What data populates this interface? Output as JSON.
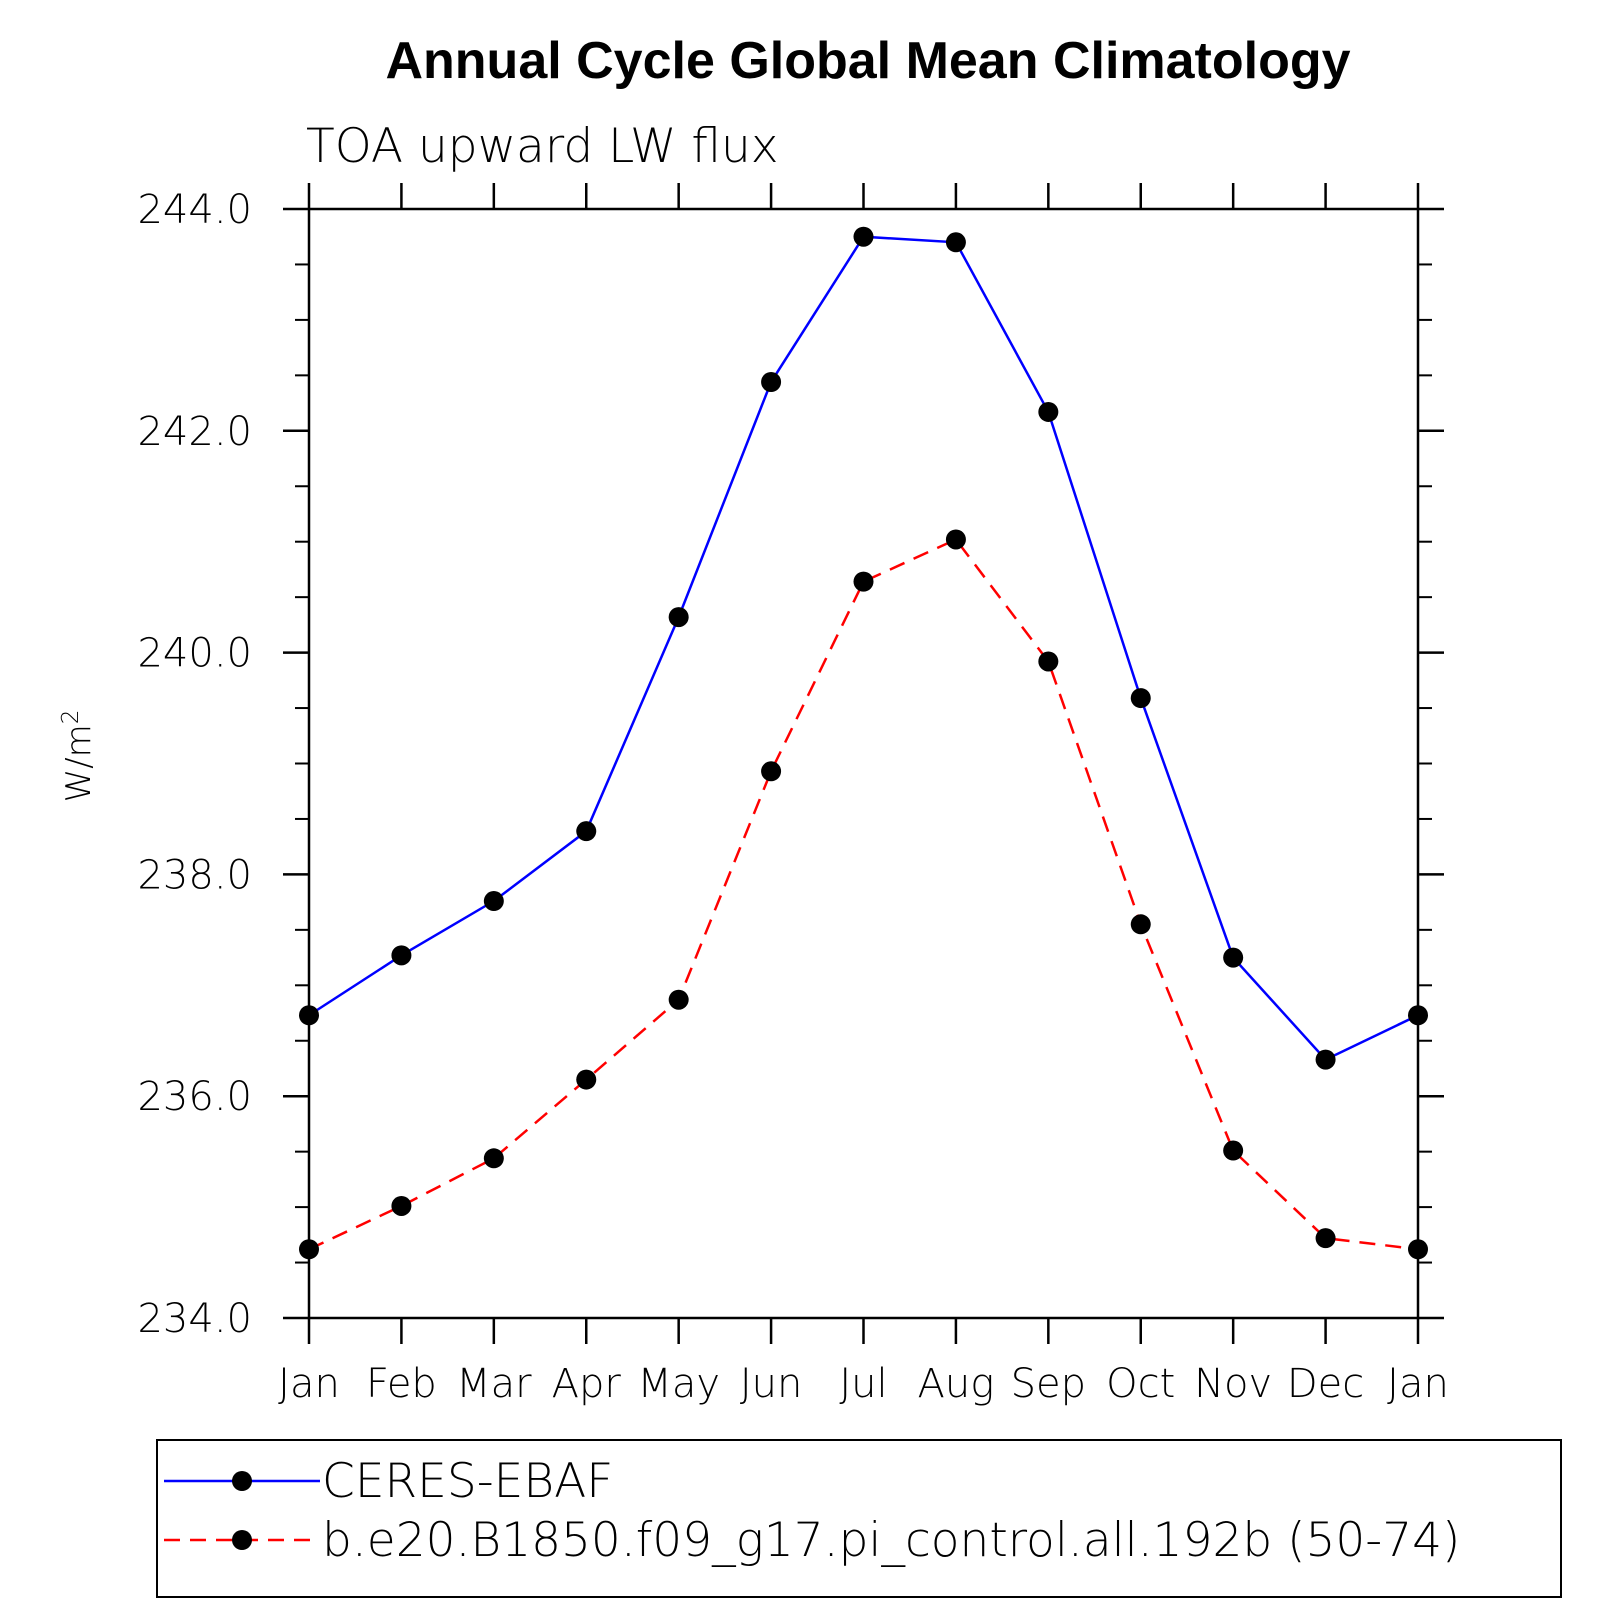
{
  "chart_data": {
    "type": "line",
    "title": "Annual Cycle Global Mean Climatology",
    "subtitle": "TOA upward LW flux",
    "xlabel": "",
    "ylabel": "W/m",
    "ylabel_superscript": "2",
    "categories": [
      "Jan",
      "Feb",
      "Mar",
      "Apr",
      "May",
      "Jun",
      "Jul",
      "Aug",
      "Sep",
      "Oct",
      "Nov",
      "Dec",
      "Jan"
    ],
    "ylim": [
      234.0,
      244.0
    ],
    "yticks": [
      "234.0",
      "236.0",
      "238.0",
      "240.0",
      "242.0",
      "244.0"
    ],
    "y_minor_step": 0.5,
    "grid": false,
    "legend_position": "bottom",
    "series": [
      {
        "name": "CERES-EBAF",
        "color": "#0000ff",
        "style": "solid",
        "marker": "filled-circle",
        "values": [
          236.73,
          237.27,
          237.76,
          238.39,
          240.32,
          242.44,
          243.75,
          243.7,
          242.17,
          239.59,
          237.25,
          236.33,
          236.73
        ]
      },
      {
        "name": "b.e20.B1850.f09_g17.pi_control.all.192b (50-74)",
        "color": "#ff0000",
        "style": "dashed",
        "marker": "filled-circle",
        "values": [
          234.62,
          235.01,
          235.44,
          236.15,
          236.87,
          238.93,
          240.64,
          241.02,
          239.92,
          237.55,
          235.51,
          234.72,
          234.62
        ]
      }
    ]
  }
}
